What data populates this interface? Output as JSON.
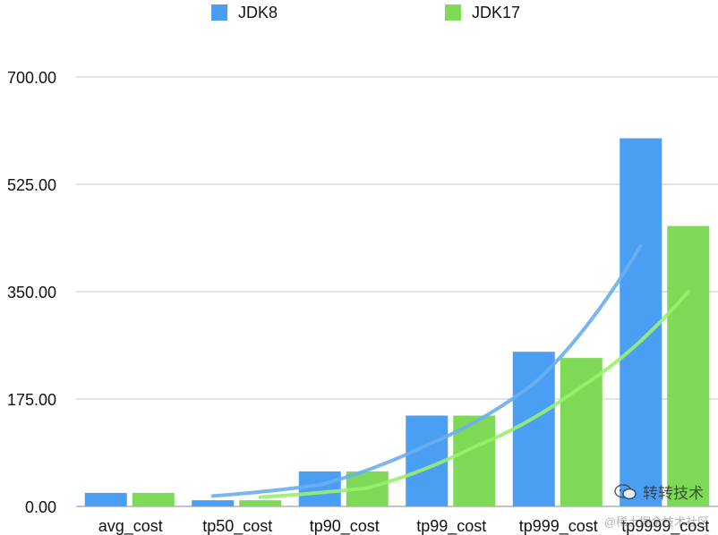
{
  "chart_data": {
    "type": "bar",
    "categories": [
      "avg_cost",
      "tp50_cost",
      "tp90_cost",
      "tp99_cost",
      "tp999_cost",
      "tp9999_cost"
    ],
    "series": [
      {
        "name": "JDK8",
        "color": "#4a9ff5",
        "values": [
          22,
          10,
          57,
          148,
          252,
          600
        ]
      },
      {
        "name": "JDK17",
        "color": "#7ed957",
        "values": [
          22,
          10,
          57,
          148,
          242,
          457
        ]
      }
    ],
    "trendlines": [
      {
        "series": "JDK8",
        "color": "#6aaef0",
        "values": [
          null,
          17,
          35,
          100,
          200,
          425
        ]
      },
      {
        "series": "JDK17",
        "color": "#9af06a",
        "values": [
          null,
          15,
          30,
          97,
          195,
          350
        ]
      }
    ],
    "yticks": [
      "0.00",
      "175.00",
      "350.00",
      "525.00",
      "700.00"
    ],
    "ylim": [
      0,
      700
    ],
    "grid": true,
    "legend_position": "top-center",
    "watermark": {
      "line1": "转转技术",
      "line2": "@稀土掘金技术社区"
    }
  }
}
